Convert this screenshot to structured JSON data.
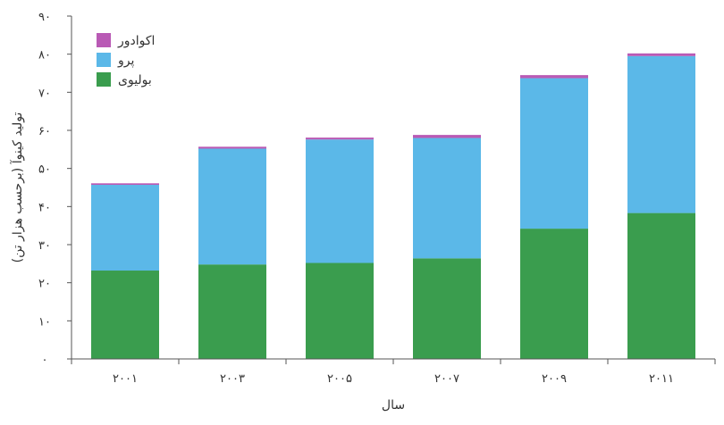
{
  "chart_data": {
    "type": "bar",
    "stacked": true,
    "categories": [
      "۲۰۰۱",
      "۲۰۰۳",
      "۲۰۰۵",
      "۲۰۰۷",
      "۲۰۰۹",
      "۲۰۱۱"
    ],
    "series": [
      {
        "name": "بولیوی",
        "color": "#3a9d4e",
        "values": [
          23.2,
          24.8,
          25.2,
          26.4,
          34.2,
          38.3
        ]
      },
      {
        "name": "پرو",
        "color": "#5bb8e8",
        "values": [
          22.5,
          30.4,
          32.4,
          31.6,
          39.5,
          41.2
        ]
      },
      {
        "name": "اکوادور",
        "color": "#b95ab5",
        "values": [
          0.4,
          0.5,
          0.5,
          0.8,
          0.8,
          0.7
        ]
      }
    ],
    "xlabel": "سال",
    "ylabel": "تولید کینوآ (برحسب هزار تن)",
    "ylim": [
      0,
      90
    ],
    "yticks": [
      0,
      10,
      20,
      30,
      40,
      50,
      60,
      70,
      80,
      90
    ],
    "ytick_labels": [
      "۰",
      "۱۰",
      "۲۰",
      "۳۰",
      "۴۰",
      "۵۰",
      "۶۰",
      "۷۰",
      "۸۰",
      "۹۰"
    ],
    "legend_order": [
      "اکوادور",
      "پرو",
      "بولیوی"
    ],
    "legend_position": "top-left",
    "grid": false
  }
}
